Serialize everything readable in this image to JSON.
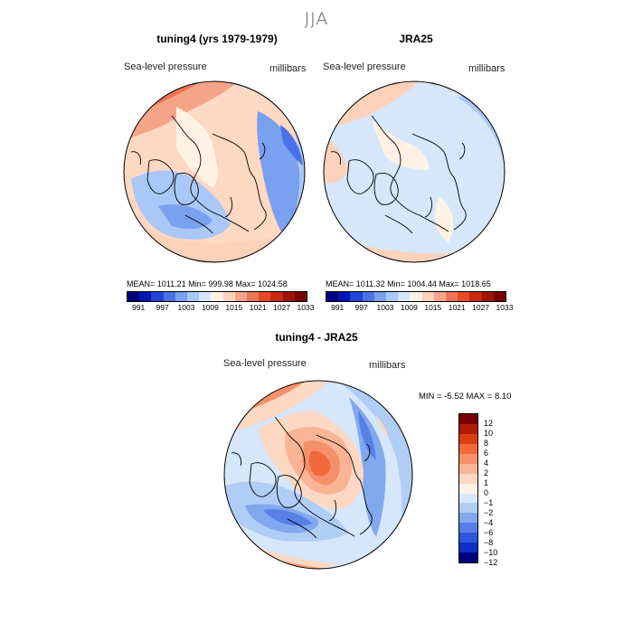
{
  "header": {
    "season": "JJA"
  },
  "panel_model": {
    "title": "tuning4 (yrs 1979-1979)",
    "variable": "Sea-level pressure",
    "units": "millibars",
    "stats": "MEAN= 1011.21   Min= 999.98   Max= 1024.58"
  },
  "panel_obs": {
    "title": "JRA25",
    "variable": "Sea-level pressure",
    "units": "millibars",
    "stats": "MEAN= 1011.32   Min= 1004.44   Max= 1018.65"
  },
  "panel_diff": {
    "title": "tuning4 - JRA25",
    "variable": "Sea-level pressure",
    "units": "millibars",
    "stats": "MIN =    -5.52  MAX =    8.10"
  },
  "colorbar_abs": {
    "colors": [
      "#00007f",
      "#0016b0",
      "#1f44d6",
      "#4a72e8",
      "#7aa0f0",
      "#a9c8f8",
      "#d6e6fb",
      "#fff2e4",
      "#fdd2bb",
      "#f6a488",
      "#ef7455",
      "#e64b26",
      "#c8290f",
      "#9e1503",
      "#7a0000"
    ],
    "ticks": [
      "991",
      "997",
      "1003",
      "1009",
      "1015",
      "1021",
      "1027",
      "1033"
    ]
  },
  "colorbar_diff": {
    "colors": [
      "#7a0000",
      "#b01a06",
      "#dc3c14",
      "#f06a3a",
      "#f5916a",
      "#f9b495",
      "#fdd8c2",
      "#fff3e6",
      "#d6e6fb",
      "#b0cdf6",
      "#82a8ef",
      "#5680e6",
      "#2e58dc",
      "#0c2fc4",
      "#00007f"
    ],
    "ticks": [
      "12",
      "10",
      "8",
      "6",
      "4",
      "2",
      "1",
      "0",
      "−1",
      "−2",
      "−4",
      "−6",
      "−8",
      "−10",
      "−12"
    ]
  }
}
